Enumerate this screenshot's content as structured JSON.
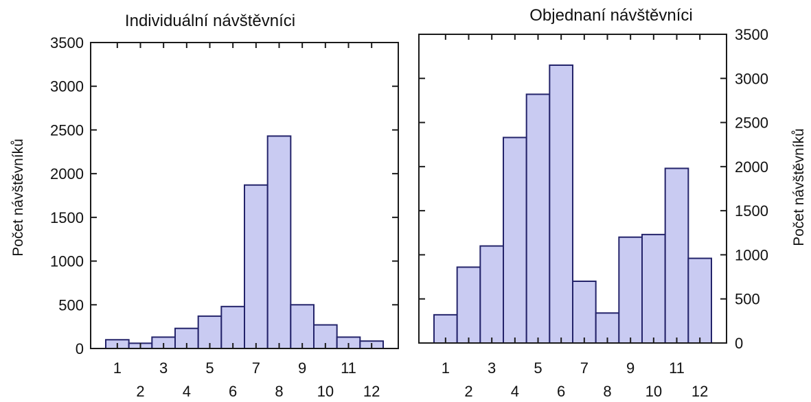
{
  "colors": {
    "bar_fill": "#c9cbf2",
    "bar_stroke": "#23236a",
    "axis": "#1a1a1a",
    "text": "#111111"
  },
  "chart_data": [
    {
      "type": "bar",
      "title": "Individuální návštěvníci",
      "xlabel": "",
      "ylabel": "Počet návštěvníků",
      "categories": [
        "1",
        "2",
        "3",
        "4",
        "5",
        "6",
        "7",
        "8",
        "9",
        "10",
        "11",
        "12"
      ],
      "values": [
        100,
        60,
        130,
        230,
        370,
        480,
        1870,
        2430,
        500,
        270,
        130,
        85
      ],
      "ylim": [
        0,
        3500
      ],
      "yticks": [
        "0",
        "500",
        "1000",
        "1500",
        "2000",
        "2500",
        "3000",
        "3500"
      ],
      "y_axis_side": "left",
      "grid": false,
      "legend": "none"
    },
    {
      "type": "bar",
      "title": "Objednaní návštěvníci",
      "xlabel": "",
      "ylabel": "Počet návštěvníků",
      "categories": [
        "1",
        "2",
        "3",
        "4",
        "5",
        "6",
        "7",
        "8",
        "9",
        "10",
        "11",
        "12"
      ],
      "values": [
        320,
        860,
        1100,
        2330,
        2820,
        3150,
        700,
        340,
        1200,
        1230,
        1980,
        960
      ],
      "ylim": [
        0,
        3500
      ],
      "yticks": [
        "0",
        "500",
        "1000",
        "1500",
        "2000",
        "2500",
        "3000",
        "3500"
      ],
      "y_axis_side": "right",
      "grid": false,
      "legend": "none"
    }
  ]
}
